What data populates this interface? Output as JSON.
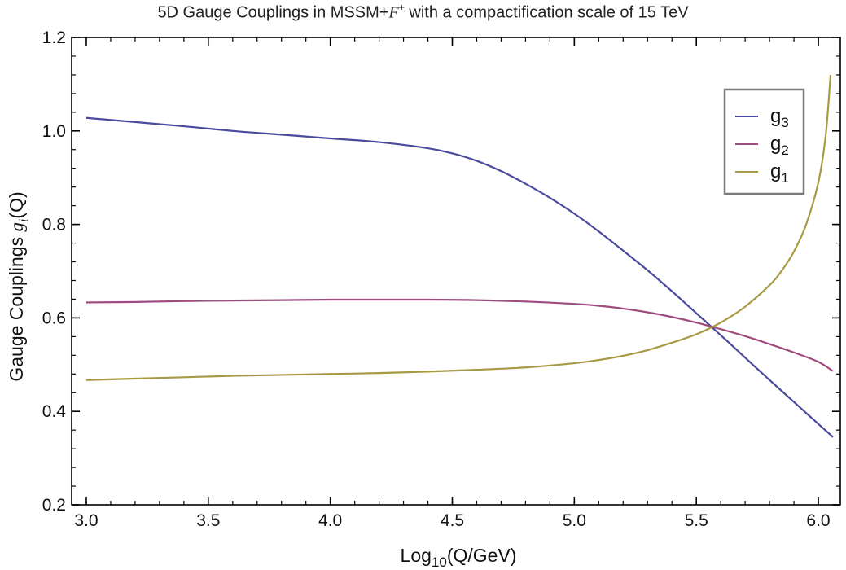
{
  "chart_data": {
    "type": "line",
    "title_main": "5D Gauge Couplings in MSSM+",
    "title_symbol": "F",
    "title_sup": "±",
    "title_tail": " with a compactification scale of 15 TeV",
    "xlabel_base": "Log",
    "xlabel_sub": "10",
    "xlabel_tail": "(Q/GeV)",
    "ylabel_prefix": "Gauge Couplings ",
    "ylabel_symbol": "g",
    "ylabel_sub": "i",
    "ylabel_tail": "(Q)",
    "xlim": [
      2.94,
      6.09
    ],
    "ylim": [
      0.2,
      1.2
    ],
    "x_ticks": [
      "3.0",
      "3.5",
      "4.0",
      "4.5",
      "5.0",
      "5.5",
      "6.0"
    ],
    "y_ticks": [
      "0.2",
      "0.4",
      "0.6",
      "0.8",
      "1.0",
      "1.2"
    ],
    "legend_position": "top-right",
    "series": [
      {
        "name": "g3",
        "label_base": "g",
        "label_sub": "3",
        "color": "#4b4b9e",
        "x": [
          3.0,
          3.2,
          3.4,
          3.6,
          3.8,
          4.0,
          4.2,
          4.4,
          4.5,
          4.6,
          4.7,
          4.8,
          4.9,
          5.0,
          5.1,
          5.2,
          5.3,
          5.4,
          5.5,
          5.6,
          5.7,
          5.8,
          5.9,
          6.0,
          6.06
        ],
        "y": [
          1.028,
          1.019,
          1.01,
          1.0,
          0.992,
          0.984,
          0.976,
          0.963,
          0.952,
          0.936,
          0.914,
          0.887,
          0.857,
          0.823,
          0.785,
          0.744,
          0.702,
          0.657,
          0.61,
          0.563,
          0.515,
          0.467,
          0.42,
          0.373,
          0.345
        ]
      },
      {
        "name": "g2",
        "label_base": "g",
        "label_sub": "2",
        "color": "#9e4b7e",
        "x": [
          3.0,
          3.2,
          3.4,
          3.6,
          3.8,
          4.0,
          4.2,
          4.4,
          4.6,
          4.8,
          5.0,
          5.1,
          5.2,
          5.3,
          5.4,
          5.5,
          5.6,
          5.7,
          5.8,
          5.9,
          6.0,
          6.06
        ],
        "y": [
          0.633,
          0.634,
          0.636,
          0.637,
          0.638,
          0.639,
          0.639,
          0.639,
          0.638,
          0.635,
          0.63,
          0.626,
          0.62,
          0.612,
          0.602,
          0.59,
          0.576,
          0.561,
          0.544,
          0.526,
          0.506,
          0.486
        ]
      },
      {
        "name": "g1",
        "label_base": "g",
        "label_sub": "1",
        "color": "#a89a45",
        "x": [
          3.0,
          3.2,
          3.4,
          3.6,
          3.8,
          4.0,
          4.2,
          4.4,
          4.6,
          4.8,
          5.0,
          5.1,
          5.2,
          5.3,
          5.4,
          5.5,
          5.6,
          5.7,
          5.8,
          5.85,
          5.9,
          5.95,
          6.0,
          6.03,
          6.05
        ],
        "y": [
          0.467,
          0.47,
          0.473,
          0.476,
          0.478,
          0.48,
          0.482,
          0.485,
          0.489,
          0.494,
          0.503,
          0.51,
          0.519,
          0.531,
          0.547,
          0.565,
          0.59,
          0.624,
          0.67,
          0.701,
          0.742,
          0.8,
          0.89,
          0.99,
          1.12
        ]
      }
    ]
  }
}
